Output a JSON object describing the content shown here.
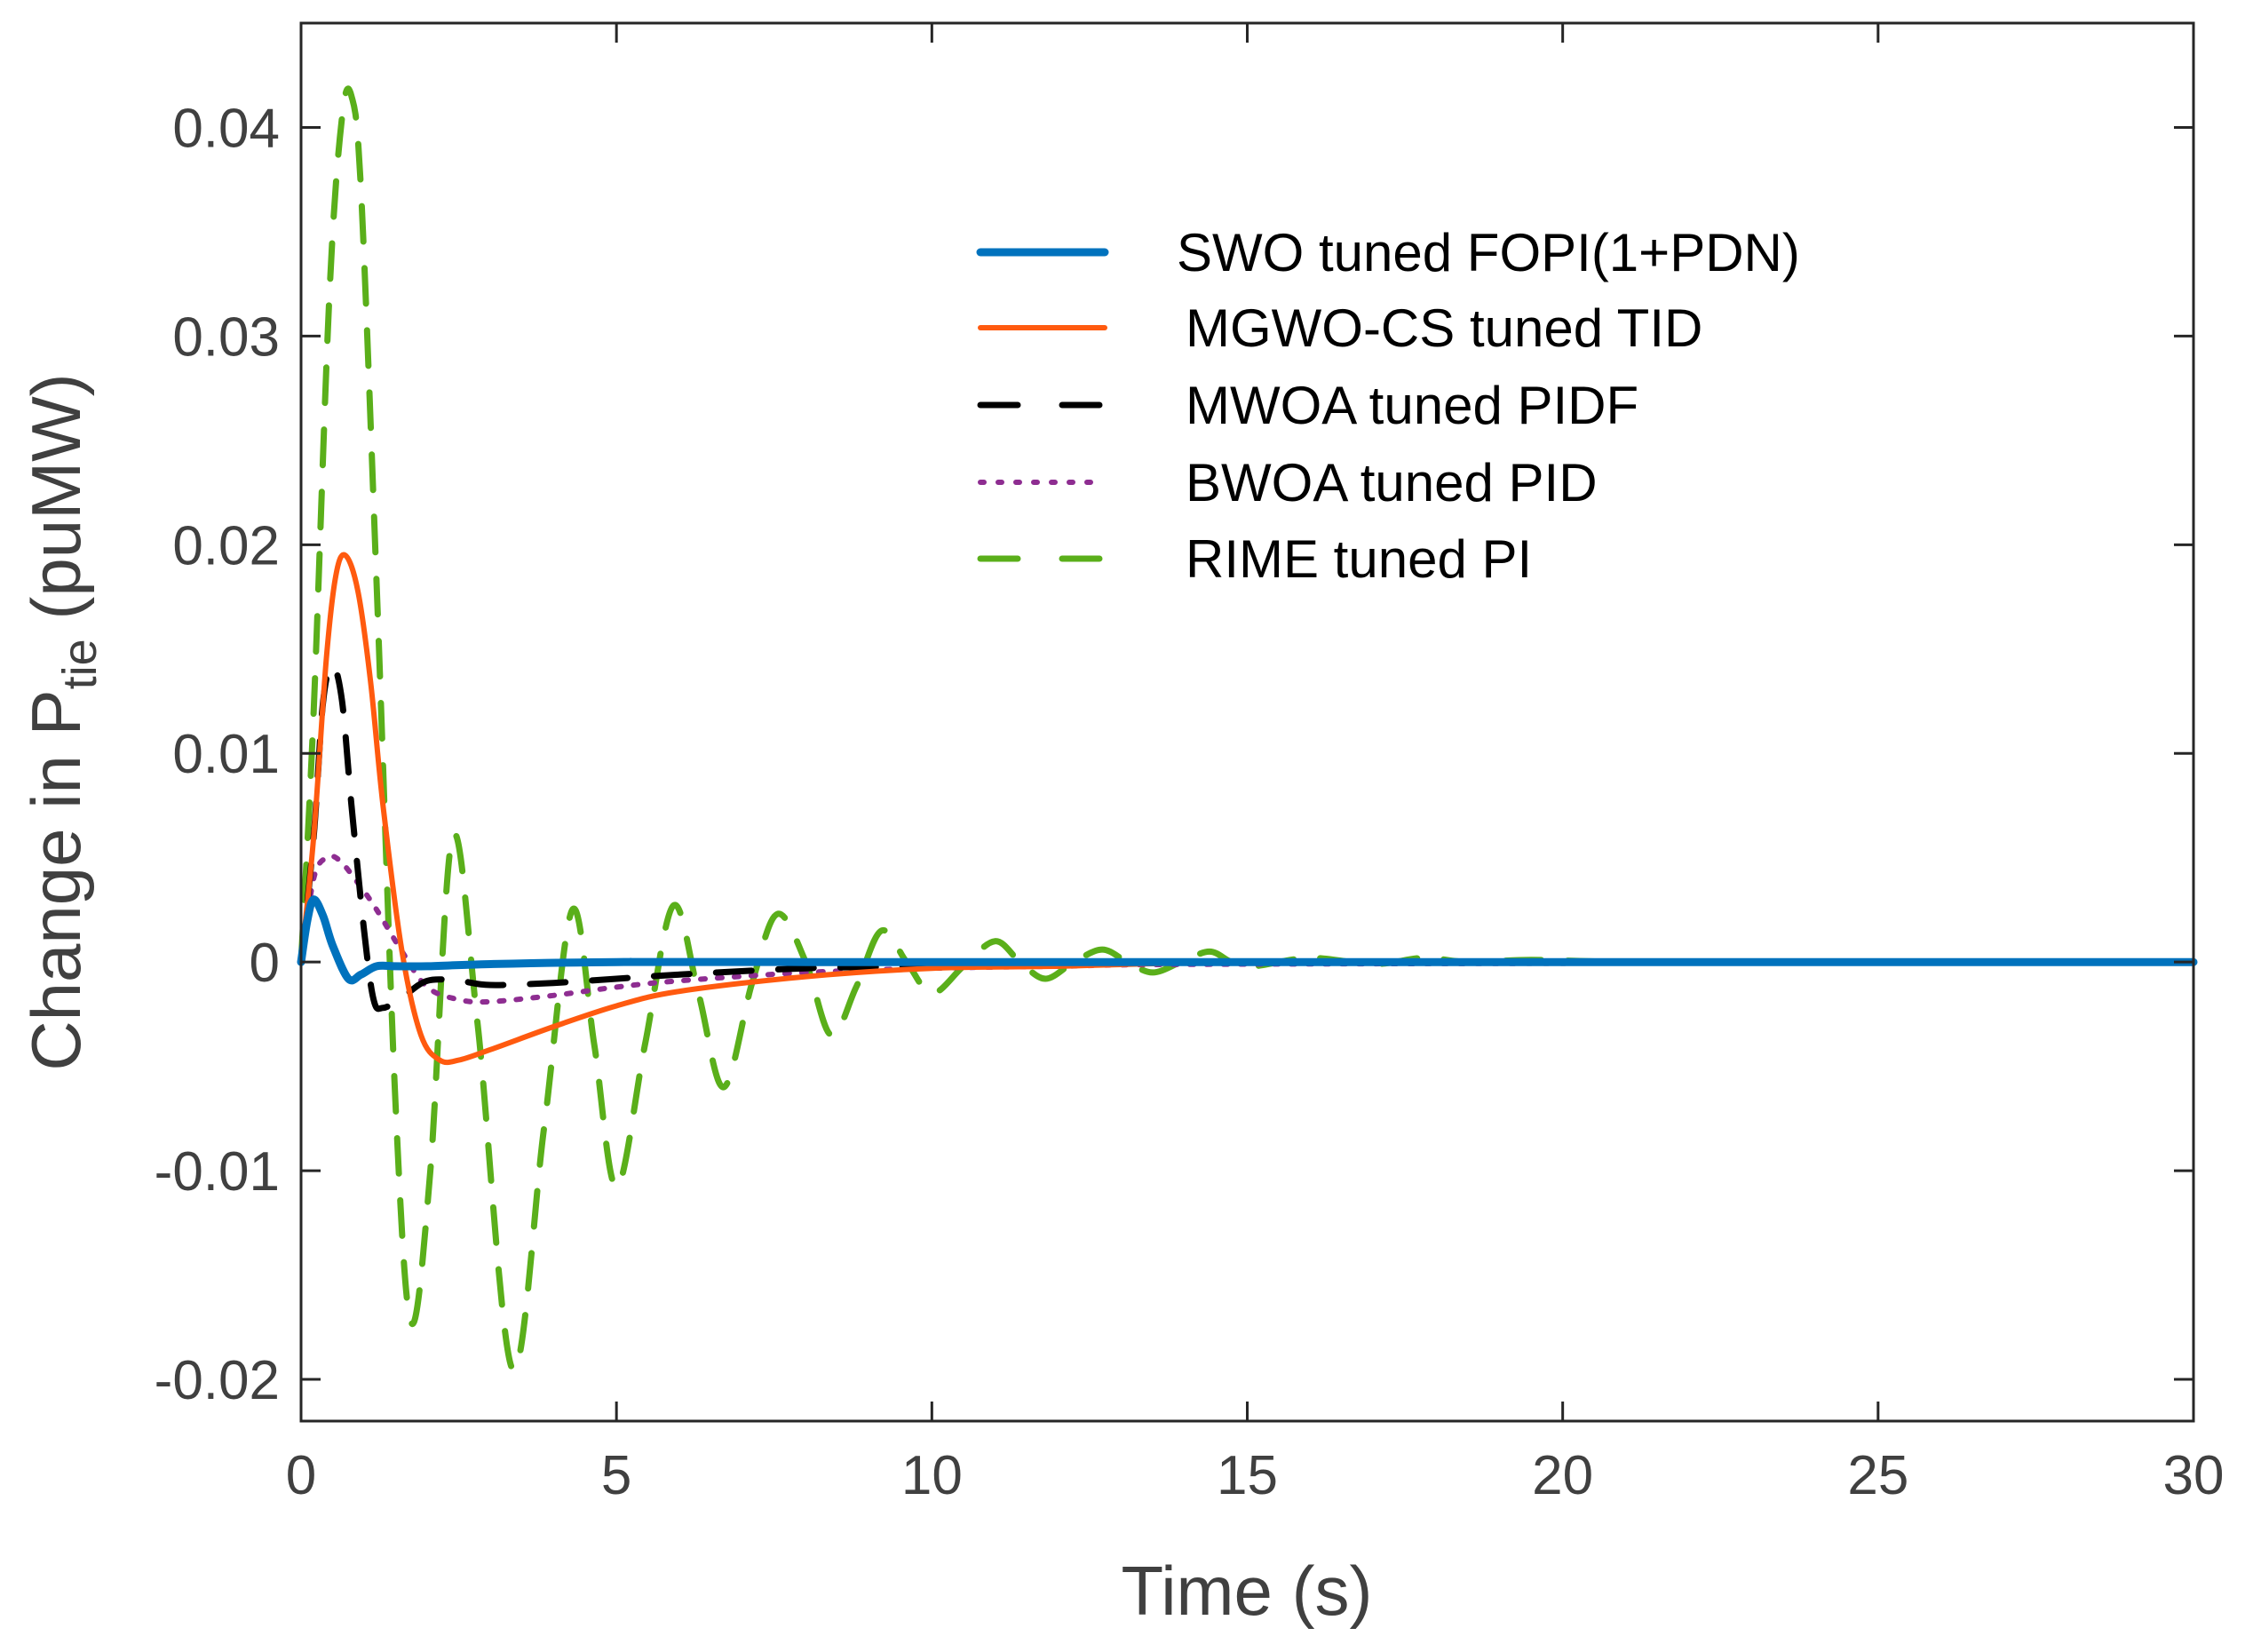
{
  "chart_data": {
    "type": "line",
    "title": "",
    "xlabel": "Time (s)",
    "ylabel": "Change in Ptie (puMW)",
    "ylabel_parts": {
      "main": "Change in P",
      "sub": "tie",
      "unit": " (puMW)"
    },
    "xlim": [
      0,
      30
    ],
    "ylim": [
      -0.022,
      0.045
    ],
    "xticks": [
      0,
      5,
      10,
      15,
      20,
      25,
      30
    ],
    "xtick_labels": [
      "0",
      "5",
      "10",
      "15",
      "20",
      "25",
      "30"
    ],
    "yticks": [
      -0.02,
      -0.01,
      0,
      0.01,
      0.02,
      0.03,
      0.04
    ],
    "ytick_labels": [
      "-0.02",
      "-0.01",
      "0",
      "0.01",
      "0.02",
      "0.03",
      "0.04"
    ],
    "grid": false,
    "legend_position": "top-right",
    "series": [
      {
        "name": "SWO tuned FOPI(1+PDN)",
        "color": "#0072BD",
        "style": "solid-thick",
        "x": [
          0,
          0.1,
          0.2,
          0.35,
          0.5,
          0.75,
          0.95,
          1.2,
          1.5,
          2,
          3,
          5,
          8,
          30
        ],
        "y": [
          0,
          0.002,
          0.003,
          0.0022,
          0.0008,
          -0.0008,
          -0.0006,
          -0.0002,
          -0.0002,
          -0.0002,
          -0.0001,
          0,
          0,
          0
        ]
      },
      {
        "name": "MGWO-CS tuned TID",
        "color": "#FF5A0F",
        "style": "solid",
        "x": [
          0,
          0.2,
          0.4,
          0.55,
          0.7,
          0.9,
          1.1,
          1.3,
          1.6,
          1.9,
          2.2,
          2.5,
          3,
          4,
          5,
          6,
          8,
          10,
          12,
          15,
          20,
          30
        ],
        "y": [
          0,
          0.006,
          0.0145,
          0.0185,
          0.0195,
          0.0178,
          0.0135,
          0.0075,
          0.0005,
          -0.0035,
          -0.0047,
          -0.0047,
          -0.0042,
          -0.0031,
          -0.0021,
          -0.0014,
          -0.0007,
          -0.0003,
          -0.0002,
          0,
          0,
          0
        ]
      },
      {
        "name": "MWOA tuned PIDF",
        "color": "#000000",
        "style": "dashed",
        "x": [
          0,
          0.2,
          0.35,
          0.5,
          0.65,
          0.8,
          1.0,
          1.15,
          1.3,
          1.6,
          2.0,
          2.5,
          3,
          4,
          5,
          6,
          8,
          10,
          12,
          15,
          30
        ],
        "y": [
          0,
          0.006,
          0.0125,
          0.0142,
          0.0125,
          0.0075,
          0.0015,
          -0.0018,
          -0.0022,
          -0.0017,
          -0.0009,
          -0.0009,
          -0.0011,
          -0.001,
          -0.0008,
          -0.0006,
          -0.0003,
          -0.0002,
          -0.0001,
          0,
          0
        ]
      },
      {
        "name": "BWOA tuned PID",
        "color": "#8E2D91",
        "style": "dotted",
        "x": [
          0,
          0.2,
          0.4,
          0.6,
          0.9,
          1.2,
          1.6,
          2.0,
          2.5,
          3,
          4,
          5,
          6,
          8,
          10,
          12,
          15,
          30
        ],
        "y": [
          0,
          0.004,
          0.005,
          0.0049,
          0.0038,
          0.0025,
          0.0005,
          -0.0012,
          -0.0018,
          -0.0019,
          -0.0016,
          -0.0012,
          -0.0009,
          -0.0005,
          -0.0003,
          -0.0002,
          -0.0001,
          0
        ]
      },
      {
        "name": "RIME tuned PI",
        "color": "#5AAF1A",
        "style": "dashed",
        "x": [
          0,
          0.2,
          0.45,
          0.65,
          0.8,
          0.95,
          1.2,
          1.5,
          1.75,
          2.05,
          2.4,
          2.8,
          3.35,
          3.85,
          4.3,
          4.65,
          5.0,
          5.45,
          5.9,
          6.3,
          6.7,
          7.15,
          7.55,
          8.0,
          8.4,
          8.8,
          9.2,
          9.6,
          10.0,
          10.5,
          11.0,
          11.4,
          11.8,
          12.25,
          12.7,
          13.1,
          13.5,
          13.95,
          14.4,
          14.75,
          15.1,
          16,
          17,
          17.8,
          18.5,
          19.5,
          21,
          23,
          26,
          30
        ],
        "y": [
          0,
          0.012,
          0.032,
          0.0405,
          0.0415,
          0.037,
          0.018,
          -0.007,
          -0.0173,
          -0.01,
          0.006,
          -0.003,
          -0.0195,
          -0.008,
          0.0025,
          -0.004,
          -0.0108,
          -0.004,
          0.0027,
          -0.0015,
          -0.006,
          -0.001,
          0.0023,
          0,
          -0.0035,
          -0.0012,
          0.0015,
          0,
          -0.0015,
          -0.0002,
          0.001,
          0,
          -0.0008,
          0,
          0.0006,
          0,
          -0.0005,
          0,
          0.0005,
          0,
          -0.0002,
          0.0002,
          -0.0001,
          0.0002,
          0,
          0.0001,
          0,
          0,
          0,
          0
        ]
      }
    ]
  }
}
